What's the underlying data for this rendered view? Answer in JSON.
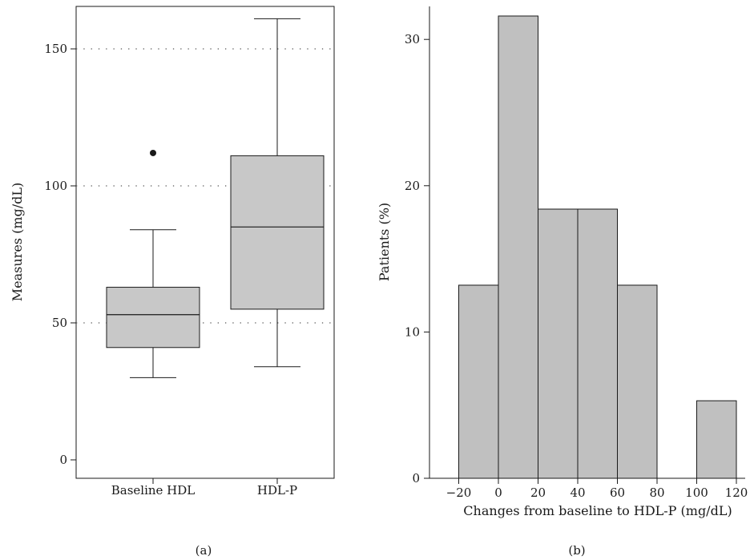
{
  "chart_data": [
    {
      "panel_label": "(a)",
      "type": "boxplot",
      "ylabel": "Measures (mg/dL)",
      "yticks": [
        0,
        50,
        100,
        150
      ],
      "ylim": [
        -6,
        163
      ],
      "grid": "horizontal dotted lines at 50, 100, 150",
      "categories": [
        "Baseline HDL",
        "HDL-P"
      ],
      "boxes": [
        {
          "category": "Baseline HDL",
          "whisker_low": 30,
          "q1": 41,
          "median": 53,
          "q3": 63,
          "whisker_high": 84,
          "outliers": [
            112
          ]
        },
        {
          "category": "HDL-P",
          "whisker_low": 34,
          "q1": 55,
          "median": 85,
          "q3": 111,
          "whisker_high": 161,
          "outliers": []
        }
      ],
      "colors": {
        "box_fill": "#c8c8c8",
        "stroke": "#1a1a1a"
      }
    },
    {
      "panel_label": "(b)",
      "type": "histogram",
      "xlabel": "Changes from baseline to HDL-P (mg/dL)",
      "ylabel": "Patients (%)",
      "xticks": [
        -20,
        0,
        20,
        40,
        60,
        80,
        100,
        120
      ],
      "yticks": [
        0,
        10,
        20,
        30
      ],
      "xlim": [
        -34,
        126
      ],
      "ylim": [
        0,
        32.5
      ],
      "bins": [
        {
          "x0": -20,
          "x1": 0,
          "value": 13.2
        },
        {
          "x0": 0,
          "x1": 20,
          "value": 31.6
        },
        {
          "x0": 20,
          "x1": 40,
          "value": 18.4
        },
        {
          "x0": 40,
          "x1": 60,
          "value": 18.4
        },
        {
          "x0": 60,
          "x1": 80,
          "value": 13.2
        },
        {
          "x0": 80,
          "x1": 100,
          "value": 0
        },
        {
          "x0": 100,
          "x1": 120,
          "value": 5.3
        }
      ],
      "colors": {
        "bar_fill": "#c0c0c0",
        "stroke": "#1a1a1a"
      }
    }
  ]
}
